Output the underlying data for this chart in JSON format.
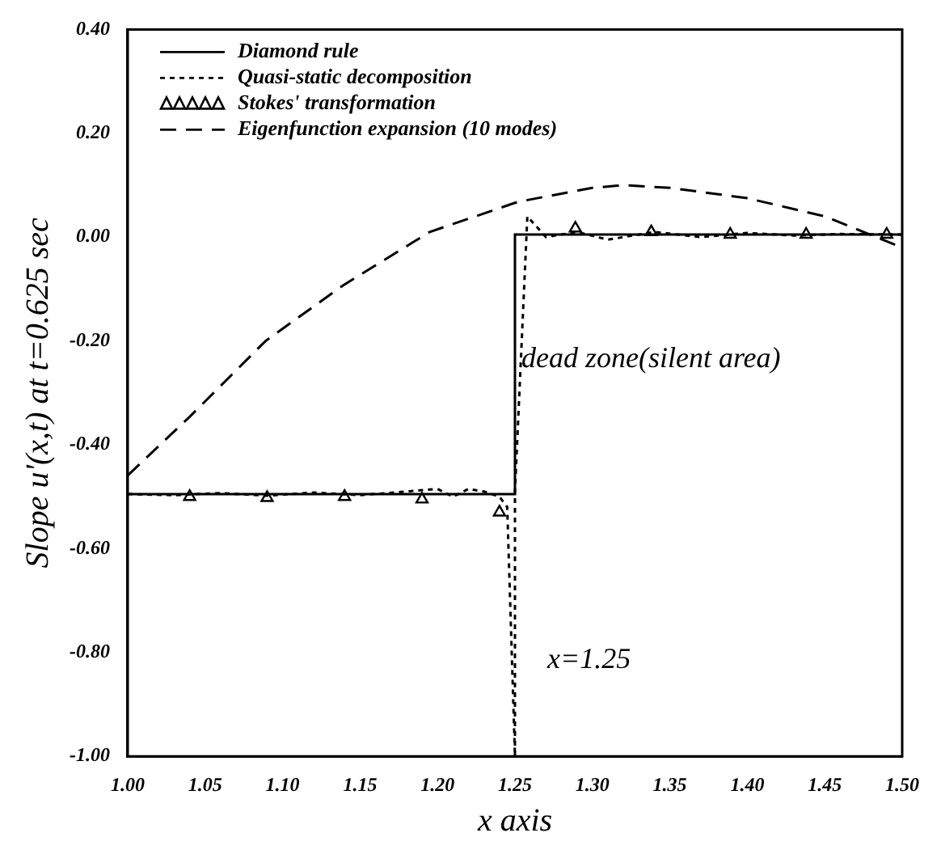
{
  "chart_data": {
    "type": "line",
    "xlabel": "x axis",
    "ylabel": "Slope u'(x,t) at t=0.625 sec",
    "xlim": [
      1.0,
      1.5
    ],
    "xticks": [
      {
        "value": 1.0,
        "label": "1.00"
      },
      {
        "value": 1.05,
        "label": "1.05"
      },
      {
        "value": 1.1,
        "label": "1.10"
      },
      {
        "value": 1.15,
        "label": "1.15"
      },
      {
        "value": 1.2,
        "label": "1.20"
      },
      {
        "value": 1.25,
        "label": "1.25"
      },
      {
        "value": 1.3,
        "label": "1.30"
      },
      {
        "value": 1.35,
        "label": "1.35"
      },
      {
        "value": 1.4,
        "label": "1.40"
      },
      {
        "value": 1.45,
        "label": "1.45"
      },
      {
        "value": 1.5,
        "label": "1.50"
      }
    ],
    "ylim": [
      -1.0,
      0.4
    ],
    "yticks": [
      {
        "value": -1.0,
        "label": "-1.00"
      },
      {
        "value": -0.8,
        "label": "-0.80"
      },
      {
        "value": -0.6,
        "label": "-0.60"
      },
      {
        "value": -0.4,
        "label": "-0.40"
      },
      {
        "value": -0.2,
        "label": "-0.20"
      },
      {
        "value": 0,
        "label": "0.00"
      },
      {
        "value": 0.2,
        "label": "0.20"
      },
      {
        "value": 0.4,
        "label": "0.40"
      }
    ],
    "grid": false,
    "legend": "top left",
    "annotations": [
      "dead zone(silent area)",
      "x=1.25"
    ],
    "series": [
      {
        "name": "Diamond rule",
        "color": "#000000",
        "line_style": "solid",
        "x": [
          1.0,
          1.25,
          1.25,
          1.5
        ],
        "values": [
          -0.495,
          -0.495,
          0.005,
          0.005
        ]
      },
      {
        "name": "Quasi-static decomposition",
        "color": "#000000",
        "line_style": "dotted",
        "x": [
          1.0,
          1.03,
          1.06,
          1.09,
          1.12,
          1.15,
          1.18,
          1.2,
          1.21,
          1.22,
          1.23,
          1.24,
          1.245,
          1.25,
          1.25,
          1.258,
          1.27,
          1.29,
          1.31,
          1.34,
          1.37,
          1.4,
          1.43,
          1.46,
          1.5
        ],
        "values": [
          -0.495,
          -0.497,
          -0.493,
          -0.498,
          -0.492,
          -0.497,
          -0.49,
          -0.485,
          -0.5,
          -0.485,
          -0.49,
          -0.5,
          -0.52,
          -1.0,
          -0.49,
          0.04,
          0.0,
          0.01,
          -0.005,
          0.01,
          0.0,
          0.008,
          0.003,
          0.006,
          0.005
        ]
      },
      {
        "name": "Stokes' transformation",
        "color": "#000000",
        "type": "scatter",
        "marker": "triangle",
        "x": [
          1.04,
          1.09,
          1.14,
          1.19,
          1.24,
          1.289,
          1.338,
          1.389,
          1.438,
          1.49
        ],
        "values": [
          -0.5,
          -0.502,
          -0.5,
          -0.505,
          -0.53,
          0.017,
          0.01,
          0.005,
          0.005,
          0.005
        ]
      },
      {
        "name": "Eigenfunction expansion (10 modes)",
        "color": "#000000",
        "line_style": "dashed",
        "x": [
          1.0,
          1.04,
          1.089,
          1.139,
          1.195,
          1.252,
          1.3,
          1.32,
          1.35,
          1.4,
          1.45,
          1.5
        ],
        "values": [
          -0.459,
          -0.346,
          -0.2,
          -0.093,
          0.01,
          0.068,
          0.095,
          0.1,
          0.095,
          0.075,
          0.04,
          -0.02
        ]
      }
    ]
  }
}
